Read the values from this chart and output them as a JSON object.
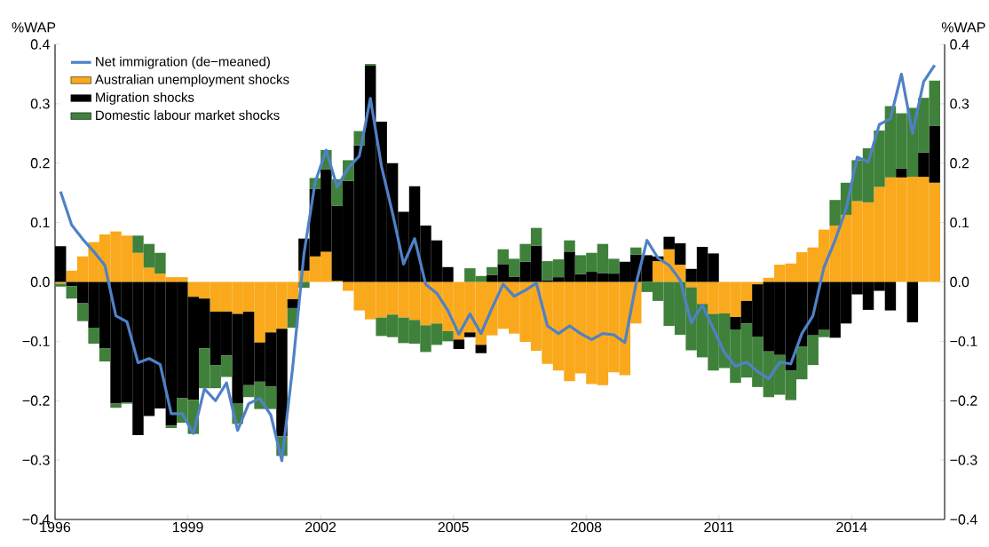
{
  "chart_data": {
    "type": "bar",
    "stacked": true,
    "ylabel": "%WAP",
    "y2label": "%WAP",
    "x": [
      1996.125,
      1996.375,
      1996.625,
      1996.875,
      1997.125,
      1997.375,
      1997.625,
      1997.875,
      1998.125,
      1998.375,
      1998.625,
      1998.875,
      1999.125,
      1999.375,
      1999.625,
      1999.875,
      2000.125,
      2000.375,
      2000.625,
      2000.875,
      2001.125,
      2001.375,
      2001.625,
      2001.875,
      2002.125,
      2002.375,
      2002.625,
      2002.875,
      2003.125,
      2003.375,
      2003.625,
      2003.875,
      2004.125,
      2004.375,
      2004.625,
      2004.875,
      2005.125,
      2005.375,
      2005.625,
      2005.875,
      2006.125,
      2006.375,
      2006.625,
      2006.875,
      2007.125,
      2007.375,
      2007.625,
      2007.875,
      2008.125,
      2008.375,
      2008.625,
      2008.875,
      2009.125,
      2009.375,
      2009.625,
      2009.875,
      2010.125,
      2010.375,
      2010.625,
      2010.875,
      2011.125,
      2011.375,
      2011.625,
      2011.875,
      2012.125,
      2012.375,
      2012.625,
      2012.875,
      2013.125,
      2013.375,
      2013.625,
      2013.875,
      2014.125,
      2014.375,
      2014.625,
      2014.875,
      2015.125,
      2015.375,
      2015.625,
      2015.875
    ],
    "series": [
      {
        "name": "Net immigration (de−meaned)",
        "type": "line",
        "color": "#4f81c7",
        "values": [
          0.152,
          0.096,
          0.072,
          0.051,
          0.028,
          -0.057,
          -0.067,
          -0.136,
          -0.129,
          -0.139,
          -0.222,
          -0.222,
          -0.255,
          -0.18,
          -0.2,
          -0.17,
          -0.25,
          -0.205,
          -0.196,
          -0.224,
          -0.301,
          -0.14,
          0.048,
          0.167,
          0.222,
          0.16,
          0.192,
          0.212,
          0.309,
          0.195,
          0.116,
          0.03,
          0.073,
          -0.004,
          -0.019,
          -0.048,
          -0.088,
          -0.054,
          -0.087,
          -0.044,
          -0.004,
          -0.024,
          -0.014,
          -0.002,
          -0.074,
          -0.087,
          -0.074,
          -0.087,
          -0.097,
          -0.087,
          -0.089,
          -0.102,
          -0.004,
          0.07,
          0.04,
          0.028,
          0.003,
          -0.069,
          -0.039,
          -0.079,
          -0.119,
          -0.142,
          -0.135,
          -0.151,
          -0.163,
          -0.135,
          -0.138,
          -0.087,
          -0.057,
          0.025,
          0.07,
          0.123,
          0.21,
          0.202,
          0.265,
          0.275,
          0.35,
          0.25,
          0.337,
          0.365
        ]
      },
      {
        "name": "Australian unemployment shocks",
        "color": "#f9a91b",
        "values": [
          -0.003,
          0.019,
          0.043,
          0.067,
          0.08,
          0.085,
          0.078,
          0.049,
          0.024,
          0.014,
          0.008,
          0.008,
          -0.025,
          -0.028,
          -0.05,
          -0.05,
          -0.054,
          -0.05,
          -0.102,
          -0.085,
          -0.079,
          -0.029,
          0.019,
          0.043,
          0.051,
          0.002,
          -0.015,
          -0.048,
          -0.063,
          -0.06,
          -0.055,
          -0.06,
          -0.064,
          -0.073,
          -0.07,
          -0.083,
          -0.097,
          -0.085,
          -0.106,
          -0.09,
          -0.079,
          -0.087,
          -0.101,
          -0.116,
          -0.138,
          -0.149,
          -0.167,
          -0.154,
          -0.172,
          -0.174,
          -0.152,
          -0.157,
          -0.07,
          0,
          0.035,
          0.055,
          0.029,
          -0.009,
          -0.037,
          -0.054,
          -0.053,
          -0.059,
          -0.032,
          -0.004,
          0.007,
          0.029,
          0.031,
          0.05,
          0.058,
          0.088,
          0.095,
          0.113,
          0.136,
          0.134,
          0.16,
          0.176,
          0.176,
          0.177,
          0.177,
          0.167
        ]
      },
      {
        "name": "Migration shocks",
        "color": "#000000",
        "values": [
          0.06,
          -0.007,
          -0.036,
          -0.077,
          -0.112,
          -0.205,
          -0.203,
          -0.258,
          -0.226,
          -0.213,
          -0.242,
          -0.196,
          -0.174,
          -0.084,
          -0.09,
          -0.074,
          -0.15,
          -0.124,
          -0.066,
          -0.091,
          -0.181,
          -0.015,
          0.054,
          0.114,
          0.139,
          0.126,
          0.17,
          0.23,
          0.364,
          0.27,
          0.2,
          0.118,
          0.161,
          0.095,
          0.07,
          0.025,
          -0.016,
          -0.008,
          -0.014,
          0.012,
          0.03,
          0.009,
          0.034,
          0.061,
          0.003,
          0.008,
          0.051,
          0.013,
          0.018,
          0.015,
          0.014,
          0.034,
          0.046,
          0.045,
          0.008,
          0.021,
          0.036,
          0.022,
          0.059,
          0.048,
          0,
          -0.021,
          -0.038,
          -0.088,
          -0.117,
          -0.123,
          -0.149,
          -0.109,
          -0.09,
          -0.081,
          -0.094,
          -0.07,
          -0.021,
          -0.047,
          -0.015,
          -0.048,
          0.015,
          -0.068,
          0.041,
          0.096
        ]
      },
      {
        "name": "Domestic labour market shocks",
        "color": "#3f813b",
        "values": [
          -0.005,
          -0.021,
          -0.03,
          -0.027,
          -0.022,
          -0.007,
          -0.002,
          0.029,
          0.04,
          0.035,
          -0.004,
          -0.041,
          -0.057,
          -0.067,
          -0.039,
          -0.036,
          -0.035,
          -0.02,
          -0.046,
          -0.038,
          -0.033,
          -0.033,
          -0.01,
          0.018,
          0.032,
          0.045,
          0.035,
          0.024,
          0.003,
          -0.031,
          -0.038,
          -0.043,
          -0.04,
          -0.045,
          -0.036,
          -0.017,
          0,
          0.023,
          0.01,
          0.013,
          0.025,
          0.03,
          0.03,
          0.03,
          0.032,
          0.03,
          0.019,
          0.032,
          0.031,
          0.049,
          0.025,
          0,
          0.012,
          -0.017,
          -0.032,
          -0.074,
          -0.089,
          -0.106,
          -0.09,
          -0.095,
          -0.092,
          -0.09,
          -0.091,
          -0.085,
          -0.077,
          -0.067,
          -0.05,
          -0.055,
          -0.05,
          -0.012,
          0.043,
          0.054,
          0.069,
          0.091,
          0.095,
          0.12,
          0.093,
          0.116,
          0.092,
          0.076
        ]
      }
    ],
    "xlim": [
      1996,
      2016.1
    ],
    "xticks": [
      1996,
      1999,
      2002,
      2005,
      2008,
      2011,
      2014
    ],
    "ylim": [
      -0.4,
      0.4
    ],
    "yticks": [
      {
        "value": -0.4,
        "label": "−0.4"
      },
      {
        "value": -0.3,
        "label": "−0.3"
      },
      {
        "value": -0.2,
        "label": "−0.2"
      },
      {
        "value": -0.1,
        "label": "−0.1"
      },
      {
        "value": 0,
        "label": "0.0"
      },
      0.1,
      0.2,
      0.3,
      0.4
    ],
    "y2lim": [
      -0.4,
      0.4
    ],
    "y2ticks": [
      {
        "value": -0.4,
        "label": "−0.4"
      },
      {
        "value": -0.3,
        "label": "−0.3"
      },
      {
        "value": -0.2,
        "label": "−0.2"
      },
      {
        "value": -0.1,
        "label": "−0.1"
      },
      {
        "value": 0,
        "label": "0.0"
      },
      0.1,
      0.2,
      0.3,
      0.4
    ],
    "legend": "top left"
  }
}
